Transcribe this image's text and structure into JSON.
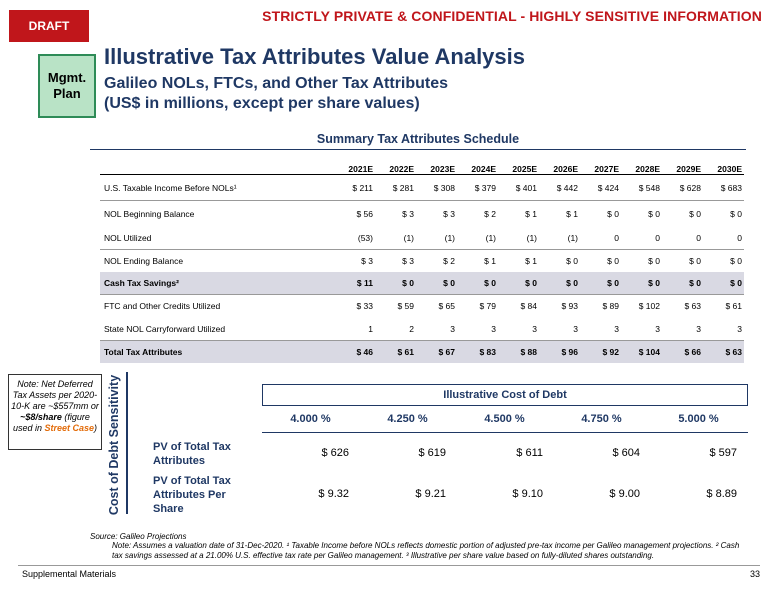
{
  "header": {
    "draft": "DRAFT",
    "confidential": "STRICTLY PRIVATE & CONFIDENTIAL - HIGHLY SENSITIVE INFORMATION",
    "badge": "Mgmt. Plan",
    "title": "Illustrative Tax Attributes Value Analysis",
    "subtitle1": "Galileo NOLs, FTCs, and Other Tax Attributes",
    "subtitle2": "(US$ in millions, except per share values)"
  },
  "schedule": {
    "title": "Summary Tax Attributes Schedule",
    "years": [
      "2021E",
      "2022E",
      "2023E",
      "2024E",
      "2025E",
      "2026E",
      "2027E",
      "2028E",
      "2029E",
      "2030E"
    ],
    "rows": [
      {
        "label": "U.S. Taxable Income Before NOLs¹",
        "values": [
          "$ 211",
          "$ 281",
          "$ 308",
          "$ 379",
          "$ 401",
          "$ 442",
          "$ 424",
          "$ 548",
          "$ 628",
          "$ 683"
        ]
      },
      {
        "label": "NOL Beginning Balance",
        "values": [
          "$ 56",
          "$ 3",
          "$ 3",
          "$ 2",
          "$ 1",
          "$ 1",
          "$ 0",
          "$ 0",
          "$ 0",
          "$ 0"
        ]
      },
      {
        "label": "NOL Utilized",
        "values": [
          "(53)",
          "(1)",
          "(1)",
          "(1)",
          "(1)",
          "(1)",
          "0",
          "0",
          "0",
          "0"
        ]
      },
      {
        "label": "NOL Ending Balance",
        "values": [
          "$ 3",
          "$ 3",
          "$ 2",
          "$ 1",
          "$ 1",
          "$ 0",
          "$ 0",
          "$ 0",
          "$ 0",
          "$ 0"
        ]
      },
      {
        "label": "Cash Tax Savings²",
        "values": [
          "$ 11",
          "$ 0",
          "$ 0",
          "$ 0",
          "$ 0",
          "$ 0",
          "$ 0",
          "$ 0",
          "$ 0",
          "$ 0"
        ]
      },
      {
        "label": "FTC and Other Credits Utilized",
        "values": [
          "$ 33",
          "$ 59",
          "$ 65",
          "$ 79",
          "$ 84",
          "$ 93",
          "$ 89",
          "$ 102",
          "$ 63",
          "$ 61"
        ]
      },
      {
        "label": "State NOL Carryforward Utilized",
        "values": [
          "1",
          "2",
          "3",
          "3",
          "3",
          "3",
          "3",
          "3",
          "3",
          "3"
        ]
      },
      {
        "label": "Total Tax Attributes",
        "values": [
          "$ 46",
          "$ 61",
          "$ 67",
          "$ 83",
          "$ 88",
          "$ 96",
          "$ 92",
          "$ 104",
          "$ 66",
          "$ 63"
        ]
      }
    ]
  },
  "note": {
    "text1": "Note: Net Deferred Tax Assets per 2020-10-K are ~$557mm or ",
    "bold": "~$8/share",
    "text2": " (figure used in ",
    "highlight": "Street Case",
    "text3": ")"
  },
  "sensitivity": {
    "side_label": "Cost of Debt Sensitivity",
    "header": "Illustrative Cost of Debt",
    "rates": [
      "4.000 %",
      "4.250 %",
      "4.500 %",
      "4.750 %",
      "5.000 %"
    ],
    "row1_label": "PV of Total Tax Attributes",
    "row1_values": [
      "$ 626",
      "$ 619",
      "$ 611",
      "$ 604",
      "$ 597"
    ],
    "row2_label": "PV of Total Tax Attributes Per Share",
    "row2_values": [
      "$ 9.32",
      "$ 9.21",
      "$ 9.10",
      "$ 9.00",
      "$ 8.89"
    ]
  },
  "footer": {
    "source": "Source: Galileo Projections",
    "footnote": "Note: Assumes a valuation date of 31-Dec-2020. ¹ Taxable Income before NOLs reflects domestic portion of adjusted pre-tax income per Galileo management projections. ² Cash tax savings assessed at a 21.00% U.S. effective tax rate per Galileo management. ³ Illustrative per share value based on fully-diluted shares outstanding.",
    "section": "Supplemental Materials",
    "page": "33"
  },
  "colors": {
    "accent_red": "#c0161b",
    "navy": "#1f3864",
    "badge_green": "#b9e3c6",
    "street_orange": "#e36c0a"
  }
}
